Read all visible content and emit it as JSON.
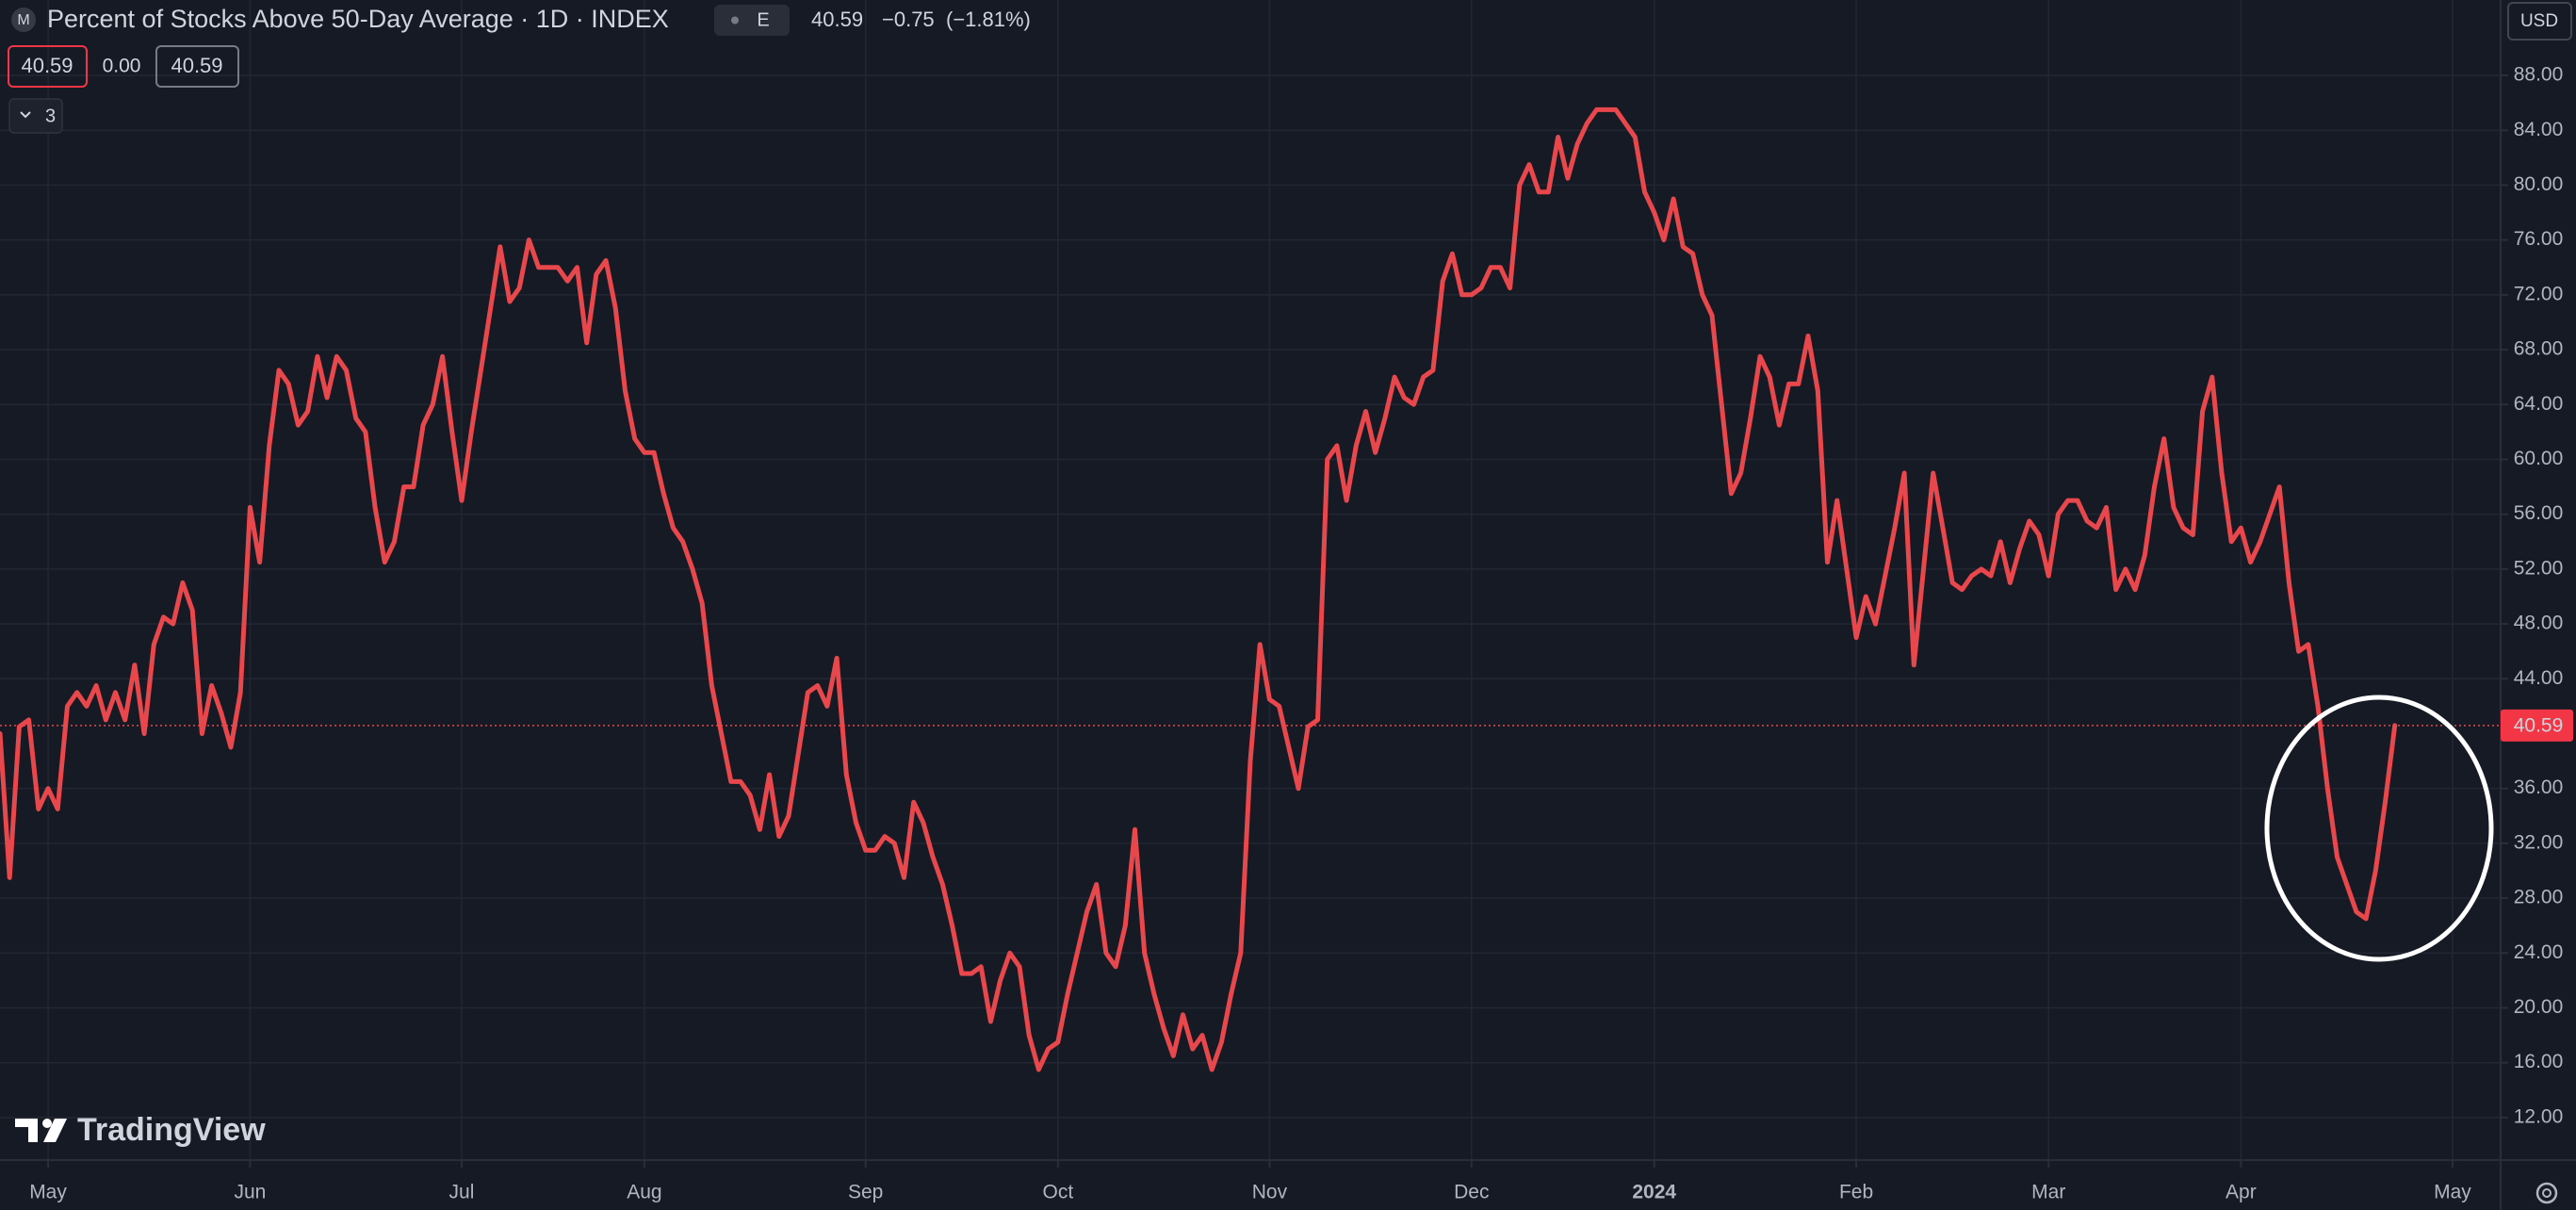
{
  "header": {
    "symbol_badge": "M",
    "title": "Percent of Stocks Above 50-Day Average · 1D · INDEX",
    "exchange_badge": "E",
    "last": "40.59",
    "change": "−0.75",
    "change_pct": "(−1.81%)",
    "bid": "40.59",
    "spread": "0.00",
    "ask": "40.59",
    "indicators_count": "3",
    "currency": "USD",
    "logo": "TradingView"
  },
  "chart_data": {
    "type": "line",
    "color": "#e8474c",
    "grid": true,
    "last_price": 40.59,
    "xlim": [
      0,
      260
    ],
    "ylim": [
      8.9,
      93.5
    ],
    "xticks": [
      {
        "value": 5,
        "label": "May"
      },
      {
        "value": 26,
        "label": "Jun"
      },
      {
        "value": 48,
        "label": "Jul"
      },
      {
        "value": 67,
        "label": "Aug"
      },
      {
        "value": 90,
        "label": "Sep"
      },
      {
        "value": 110,
        "label": "Oct"
      },
      {
        "value": 132,
        "label": "Nov"
      },
      {
        "value": 153,
        "label": "Dec"
      },
      {
        "value": 172,
        "label": "2024"
      },
      {
        "value": 193,
        "label": "Feb"
      },
      {
        "value": 213,
        "label": "Mar"
      },
      {
        "value": 233,
        "label": "Apr"
      },
      {
        "value": 255,
        "label": "May"
      }
    ],
    "yticks": [
      {
        "value": 12,
        "label": "12.00"
      },
      {
        "value": 16,
        "label": "16.00"
      },
      {
        "value": 20,
        "label": "20.00"
      },
      {
        "value": 24,
        "label": "24.00"
      },
      {
        "value": 28,
        "label": "28.00"
      },
      {
        "value": 32,
        "label": "32.00"
      },
      {
        "value": 36,
        "label": "36.00"
      },
      {
        "value": 44,
        "label": "44.00"
      },
      {
        "value": 48,
        "label": "48.00"
      },
      {
        "value": 52,
        "label": "52.00"
      },
      {
        "value": 56,
        "label": "56.00"
      },
      {
        "value": 60,
        "label": "60.00"
      },
      {
        "value": 64,
        "label": "64.00"
      },
      {
        "value": 68,
        "label": "68.00"
      },
      {
        "value": 72,
        "label": "72.00"
      },
      {
        "value": 76,
        "label": "76.00"
      },
      {
        "value": 80,
        "label": "80.00"
      },
      {
        "value": 84,
        "label": "84.00"
      },
      {
        "value": 88,
        "label": "88.00"
      }
    ],
    "values": [
      40,
      29.5,
      40.5,
      41,
      34.5,
      36,
      34.5,
      42,
      43,
      42,
      43.5,
      41,
      43,
      41,
      45,
      40,
      46.5,
      48.5,
      48,
      51,
      49,
      40,
      43.5,
      41.5,
      39,
      43,
      56.5,
      52.5,
      61,
      66.5,
      65.5,
      62.5,
      63.5,
      67.5,
      64.5,
      67.5,
      66.5,
      63,
      62,
      56.5,
      52.5,
      54,
      58,
      58,
      62.5,
      64,
      67.5,
      62,
      57,
      62,
      66.5,
      71,
      75.5,
      71.5,
      72.5,
      76,
      74,
      74,
      74,
      73,
      74,
      68.5,
      73.5,
      74.5,
      71,
      65,
      61.5,
      60.5,
      60.5,
      57.5,
      55,
      54,
      52,
      49.5,
      43.5,
      40,
      36.5,
      36.5,
      35.5,
      33,
      37,
      32.5,
      34,
      38.5,
      43,
      43.5,
      42,
      45.5,
      37,
      33.5,
      31.5,
      31.5,
      32.5,
      32,
      29.5,
      35,
      33.5,
      31,
      29,
      26,
      22.5,
      22.5,
      23,
      19,
      22,
      24,
      23,
      18,
      15.5,
      17,
      17.5,
      21,
      24,
      27,
      29,
      24,
      23,
      26,
      33,
      24,
      21,
      18.5,
      16.5,
      19.5,
      17,
      18,
      15.5,
      17.5,
      21,
      24,
      38,
      46.5,
      42.5,
      42,
      39,
      36,
      40.5,
      41,
      60,
      61,
      57,
      61,
      63.5,
      60.5,
      63,
      66,
      64.5,
      64,
      66,
      66.5,
      73,
      75,
      72,
      72,
      72.5,
      74,
      74,
      72.5,
      80,
      81.5,
      79.5,
      79.5,
      83.5,
      80.5,
      83,
      84.5,
      85.5,
      85.5,
      85.5,
      84.5,
      83.5,
      79.5,
      78,
      76,
      79,
      75.5,
      75,
      72,
      70.5,
      64,
      57.5,
      59,
      63,
      67.5,
      66,
      62.5,
      65.5,
      65.5,
      69,
      65,
      52.5,
      57,
      52,
      47,
      50,
      48,
      51.5,
      55,
      59,
      45,
      52,
      59,
      55,
      51,
      50.5,
      51.5,
      52,
      51.5,
      54,
      51,
      53.5,
      55.5,
      54.5,
      51.5,
      56,
      57,
      57,
      55.5,
      55,
      56.5,
      50.5,
      52,
      50.5,
      53,
      58,
      61.5,
      56.5,
      55,
      54.5,
      63.5,
      66,
      59,
      54,
      55,
      52.5,
      54,
      56,
      58,
      51,
      46,
      46.5,
      42,
      36,
      31,
      29,
      27,
      26.5,
      30,
      35,
      40.59
    ]
  }
}
